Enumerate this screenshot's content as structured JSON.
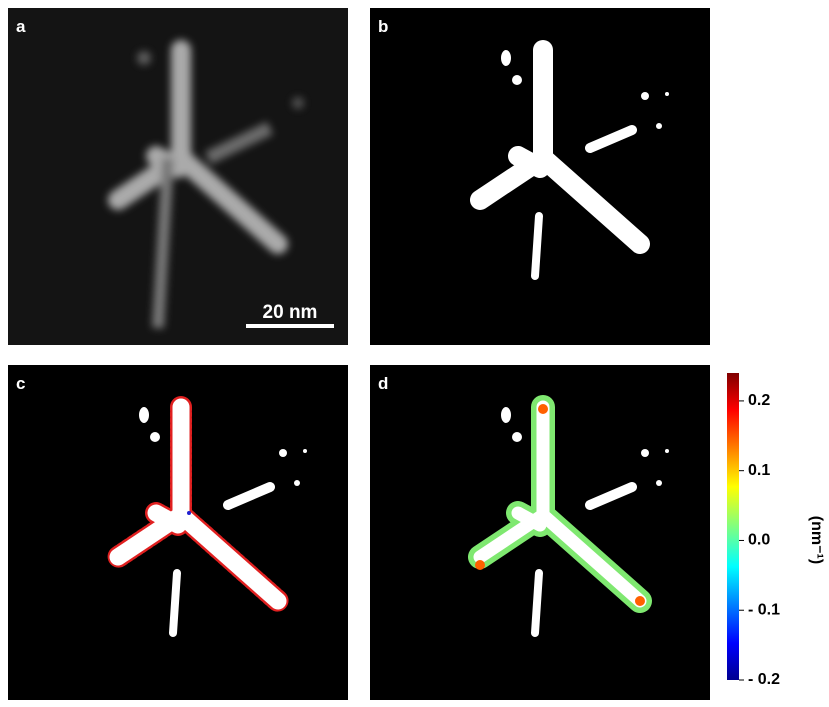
{
  "panels": [
    {
      "label": "a"
    },
    {
      "label": "b"
    },
    {
      "label": "c"
    },
    {
      "label": "d"
    }
  ],
  "scale_bar": "20 nm",
  "colorbar": {
    "label": "(nm⁻¹)",
    "clim": [
      -0.2,
      0.24
    ],
    "ticks": [
      0.2,
      0.1,
      {
        "value": 0,
        "label": "0.0"
      },
      {
        "value": -0.1,
        "label": "- 0.1"
      },
      {
        "value": -0.2,
        "label": "- 0.2"
      }
    ]
  }
}
